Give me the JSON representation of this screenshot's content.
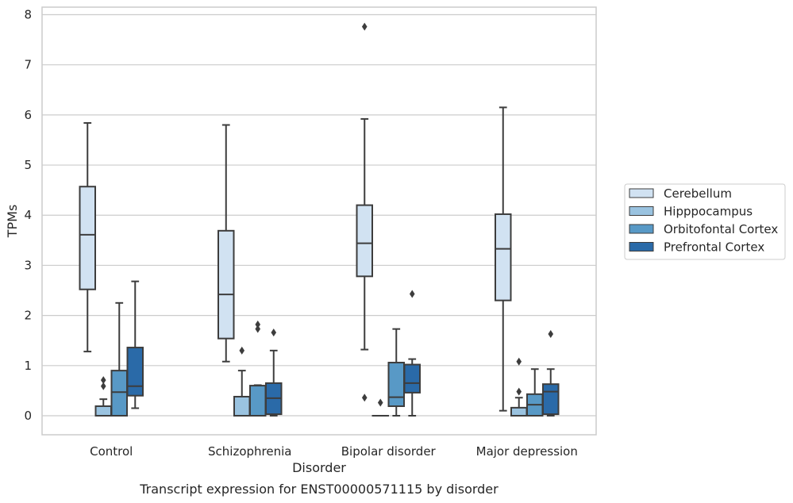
{
  "chart_data": {
    "type": "box",
    "xlabel": "Disorder",
    "ylabel": "TPMs",
    "caption": "Transcript expression for ENST00000571115 by disorder",
    "ylim": [
      -0.38,
      8.15
    ],
    "yticks": [
      "0",
      "1",
      "2",
      "3",
      "4",
      "5",
      "6",
      "7",
      "8"
    ],
    "grid": "horizontal",
    "legend_position": "right",
    "categories": [
      "Control",
      "Schizophrenia",
      "Bipolar disorder",
      "Major depression"
    ],
    "series": [
      {
        "name": "Cerebellum",
        "color": "#d1e2f2",
        "boxes": [
          {
            "whislo": 1.28,
            "q1": 2.52,
            "med": 3.61,
            "q3": 4.57,
            "whishi": 5.84,
            "fliers": []
          },
          {
            "whislo": 1.08,
            "q1": 1.54,
            "med": 2.42,
            "q3": 3.69,
            "whishi": 5.8,
            "fliers": []
          },
          {
            "whislo": 1.32,
            "q1": 2.78,
            "med": 3.44,
            "q3": 4.2,
            "whishi": 5.92,
            "fliers": [
              7.76,
              0.36
            ]
          },
          {
            "whislo": 0.1,
            "q1": 2.3,
            "med": 3.33,
            "q3": 4.02,
            "whishi": 6.15,
            "fliers": []
          }
        ]
      },
      {
        "name": "Hipppocampus",
        "color": "#9ac3e0",
        "boxes": [
          {
            "whislo": 0.0,
            "q1": 0.0,
            "med": 0.0,
            "q3": 0.19,
            "whishi": 0.33,
            "fliers": [
              0.59,
              0.71
            ]
          },
          {
            "whislo": 0.0,
            "q1": 0.0,
            "med": 0.0,
            "q3": 0.38,
            "whishi": 0.9,
            "fliers": [
              1.3
            ]
          },
          {
            "whislo": 0.0,
            "q1": 0.0,
            "med": 0.0,
            "q3": 0.0,
            "whishi": 0.0,
            "fliers": [
              0.26
            ]
          },
          {
            "whislo": 0.0,
            "q1": 0.0,
            "med": 0.0,
            "q3": 0.16,
            "whishi": 0.36,
            "fliers": [
              0.48,
              1.08
            ]
          }
        ]
      },
      {
        "name": "Orbitofontal Cortex",
        "color": "#5899c6",
        "boxes": [
          {
            "whislo": 0.0,
            "q1": 0.0,
            "med": 0.47,
            "q3": 0.9,
            "whishi": 2.25,
            "fliers": []
          },
          {
            "whislo": 0.0,
            "q1": 0.0,
            "med": 0.0,
            "q3": 0.6,
            "whishi": 0.61,
            "fliers": [
              1.73,
              1.82
            ]
          },
          {
            "whislo": 0.0,
            "q1": 0.19,
            "med": 0.37,
            "q3": 1.06,
            "whishi": 1.73,
            "fliers": []
          },
          {
            "whislo": 0.0,
            "q1": 0.0,
            "med": 0.22,
            "q3": 0.43,
            "whishi": 0.93,
            "fliers": []
          }
        ]
      },
      {
        "name": "Prefrontal Cortex",
        "color": "#2a6aa8",
        "boxes": [
          {
            "whislo": 0.15,
            "q1": 0.4,
            "med": 0.59,
            "q3": 1.36,
            "whishi": 2.68,
            "fliers": []
          },
          {
            "whislo": 0.0,
            "q1": 0.03,
            "med": 0.35,
            "q3": 0.65,
            "whishi": 1.3,
            "fliers": [
              1.66
            ]
          },
          {
            "whislo": 0.0,
            "q1": 0.46,
            "med": 0.65,
            "q3": 1.02,
            "whishi": 1.13,
            "fliers": [
              2.43
            ]
          },
          {
            "whislo": 0.0,
            "q1": 0.03,
            "med": 0.48,
            "q3": 0.63,
            "whishi": 0.93,
            "fliers": [
              1.63
            ]
          }
        ]
      }
    ]
  }
}
